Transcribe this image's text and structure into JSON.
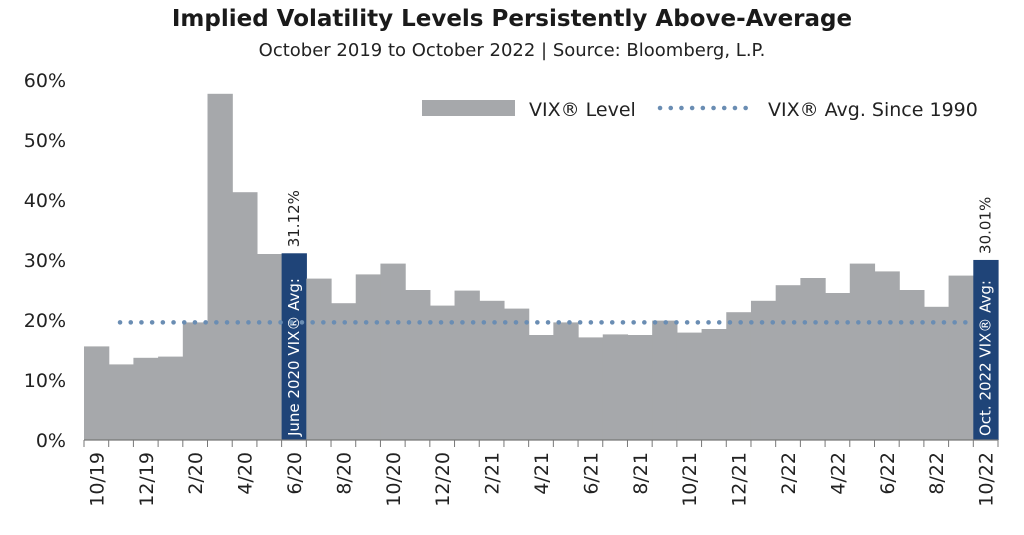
{
  "chart_data": {
    "type": "bar",
    "title": "Implied Volatility Levels Persistently Above-Average",
    "subtitle": "October 2019 to October 2022 | Source: Bloomberg, L.P.",
    "categories": [
      "10/19",
      "11/19",
      "12/19",
      "1/20",
      "2/20",
      "3/20",
      "4/20",
      "5/20",
      "6/20",
      "7/20",
      "8/20",
      "9/20",
      "10/20",
      "11/20",
      "12/20",
      "1/21",
      "2/21",
      "3/21",
      "4/21",
      "5/21",
      "6/21",
      "7/21",
      "8/21",
      "9/21",
      "10/21",
      "11/21",
      "12/21",
      "1/22",
      "2/22",
      "3/22",
      "4/22",
      "5/22",
      "6/22",
      "7/22",
      "8/22",
      "9/22",
      "10/22"
    ],
    "series": [
      {
        "name": "VIX® Level",
        "color": "#a6a8ab",
        "values": [
          15.6,
          12.6,
          13.7,
          13.9,
          19.6,
          57.7,
          41.3,
          31.0,
          31.12,
          26.9,
          22.8,
          27.6,
          29.4,
          25.0,
          22.4,
          24.9,
          23.2,
          21.9,
          17.5,
          19.6,
          17.1,
          17.6,
          17.5,
          19.9,
          17.9,
          18.5,
          21.3,
          23.2,
          25.8,
          27.0,
          24.5,
          29.4,
          28.1,
          25.0,
          22.2,
          27.4,
          30.01
        ]
      },
      {
        "name": "VIX® Avg. Since 1990",
        "color": "#6a8db3",
        "style": "dotted",
        "value": 19.6
      }
    ],
    "x_tick_labels": [
      "10/19",
      "12/19",
      "2/20",
      "4/20",
      "6/20",
      "8/20",
      "10/20",
      "12/20",
      "2/21",
      "4/21",
      "6/21",
      "8/21",
      "10/21",
      "12/21",
      "2/22",
      "4/22",
      "6/22",
      "8/22",
      "10/22"
    ],
    "y_tick_labels": [
      "0%",
      "10%",
      "20%",
      "30%",
      "40%",
      "50%",
      "60%"
    ],
    "ylim": [
      0,
      60
    ],
    "y_unit": "%",
    "legend_position": "top-right",
    "grid": false,
    "highlights": [
      {
        "category": "6/20",
        "color": "#1f4478",
        "label": "June 2020 VIX® Avg:",
        "value_label": "31.12%"
      },
      {
        "category": "10/22",
        "color": "#1f4478",
        "label": "Oct. 2022 VIX® Avg:",
        "value_label": "30.01%"
      }
    ]
  }
}
